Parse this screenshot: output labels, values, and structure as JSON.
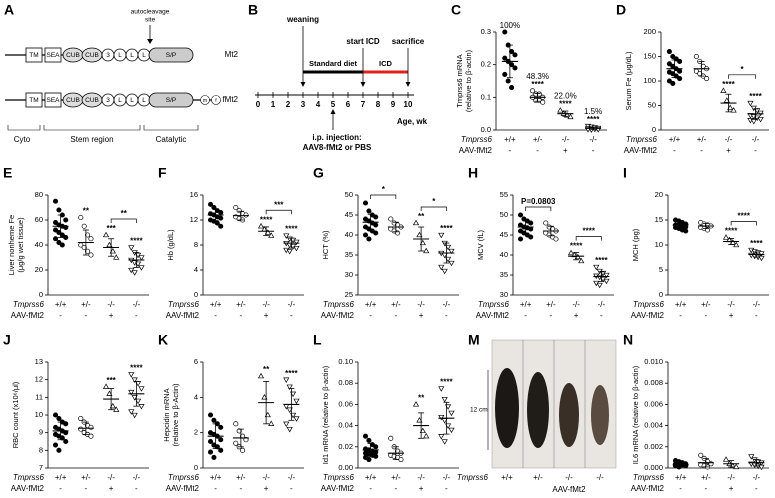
{
  "groups": {
    "genotype_label": "Tmprss6",
    "genotypes": [
      "+/+",
      "+/-",
      "-/-",
      "-/-"
    ],
    "aav_label": "AAV-fMt2",
    "aav": [
      "-",
      "-",
      "+",
      "-"
    ],
    "markers": [
      "circle-filled",
      "circle-open",
      "triangle-open",
      "triangle-down-open"
    ],
    "star_color": "#e0201b"
  },
  "diagram_a": {
    "panel": "A",
    "autocleavage": [
      "autocleavage",
      "site"
    ],
    "rows": [
      {
        "name": "Mt2",
        "domains": [
          "TM",
          "SEA",
          "CUB",
          "CUB",
          "3",
          "L",
          "L",
          "L",
          "S/P"
        ]
      },
      {
        "name": "fMt2",
        "domains": [
          "TM",
          "SEA",
          "CUB",
          "CUB",
          "3",
          "L",
          "L",
          "L",
          "S/P",
          "m",
          "f"
        ]
      }
    ],
    "regions": [
      "Cyto",
      "Stem region",
      "Catalytic"
    ]
  },
  "timeline_b": {
    "panel": "B",
    "ticks": [
      0,
      1,
      2,
      3,
      4,
      5,
      6,
      7,
      8,
      9,
      10
    ],
    "axis_label": "Age, wk",
    "segments": [
      {
        "label": "Standard diet",
        "from": 3,
        "to": 7,
        "color": "#000000"
      },
      {
        "label": "ICD",
        "from": 7,
        "to": 10,
        "color": "#e0201b"
      }
    ],
    "events": [
      {
        "label": "weaning",
        "week": 3
      },
      {
        "label": "start ICD",
        "week": 7
      },
      {
        "label": "sacrifice",
        "week": 10
      }
    ],
    "injection": {
      "lines": [
        "i.p. injection:",
        "AAV8-fMt2 or PBS"
      ],
      "week": 5
    }
  },
  "photo_m": {
    "panel": "M",
    "scale": "12 cm"
  },
  "chart_data": [
    {
      "type": "dot",
      "panel": "C",
      "ylabel": [
        "Tmprss6 mRNA",
        "(relative to β-actin)"
      ],
      "ylim": [
        0,
        0.3
      ],
      "yticks": [
        {
          "value": 0,
          "label": "0.0"
        },
        0.1,
        0.2,
        0.3
      ],
      "points": [
        [
          0.3,
          0.26,
          0.24,
          0.23,
          0.22,
          0.21,
          0.2,
          0.19,
          0.17,
          0.15,
          0.13
        ],
        [
          0.12,
          0.11,
          0.11,
          0.1,
          0.1,
          0.09,
          0.09,
          0.085
        ],
        [
          0.06,
          0.05,
          0.045,
          0.04
        ],
        [
          0.012,
          0.01,
          0.008,
          0.006,
          0.005,
          0.004,
          0.003,
          0.002,
          0.002,
          0.001
        ]
      ],
      "means": [
        0.21,
        0.1,
        0.05,
        0.005
      ],
      "sd": [
        0.05,
        0.012,
        0.008,
        0.004
      ],
      "percent": [
        "100%",
        "48.3%",
        "22.0%",
        "1.5%"
      ],
      "stars": [
        null,
        "****",
        "****",
        "****"
      ],
      "brackets": []
    },
    {
      "type": "dot",
      "panel": "D",
      "ylabel": [
        "Serum Fe (μg/dL)"
      ],
      "ylim": [
        0,
        200
      ],
      "yticks": [
        0,
        50,
        100,
        150,
        200
      ],
      "points": [
        [
          160,
          150,
          145,
          140,
          135,
          130,
          125,
          120,
          118,
          115,
          110,
          105,
          100,
          95
        ],
        [
          150,
          140,
          130,
          125,
          120,
          115,
          110,
          105
        ],
        [
          80,
          60,
          45,
          40
        ],
        [
          55,
          45,
          40,
          35,
          30,
          28,
          25,
          22,
          20,
          18
        ]
      ],
      "means": [
        125,
        125,
        55,
        33
      ],
      "sd": [
        18,
        15,
        18,
        10
      ],
      "stars": [
        null,
        null,
        "****",
        "****"
      ],
      "brackets": [
        {
          "from": 2,
          "to": 3,
          "text": "*",
          "color": "#e0201b"
        }
      ]
    },
    {
      "type": "dot",
      "panel": "E",
      "ylabel": [
        "Liver nonheme Fe",
        "(μg/g wet tissue)"
      ],
      "ylim": [
        0,
        80
      ],
      "yticks": [
        0,
        20,
        40,
        60,
        80
      ],
      "points": [
        [
          75,
          68,
          64,
          60,
          58,
          56,
          55,
          54,
          52,
          50,
          48,
          46,
          45,
          42,
          40
        ],
        [
          62,
          55,
          48,
          45,
          40,
          38,
          35,
          32
        ],
        [
          48,
          40,
          35,
          30
        ],
        [
          38,
          34,
          32,
          30,
          28,
          26,
          25,
          22,
          20,
          18
        ]
      ],
      "means": [
        55,
        42,
        38,
        28
      ],
      "sd": [
        9,
        10,
        7,
        6
      ],
      "stars": [
        null,
        "**",
        "***",
        "****"
      ],
      "brackets": [
        {
          "from": 2,
          "to": 3,
          "text": "**",
          "color": "#e0201b"
        }
      ]
    },
    {
      "type": "dot",
      "panel": "F",
      "ylabel": [
        "Hb (g/dL)"
      ],
      "ylim": [
        0,
        16
      ],
      "yticks": [
        0,
        4,
        8,
        12,
        16
      ],
      "points": [
        [
          14.5,
          14,
          13.5,
          13.2,
          13,
          12.8,
          12.5,
          12.3,
          12,
          11.8,
          11.5,
          11
        ],
        [
          14,
          13.5,
          13,
          12.8,
          12.5,
          12.2,
          12
        ],
        [
          11,
          10.5,
          10,
          9.5
        ],
        [
          9.5,
          9,
          8.8,
          8.5,
          8.3,
          8,
          7.8,
          7.5,
          7.2,
          7
        ]
      ],
      "means": [
        12.8,
        12.7,
        10.2,
        8.3
      ],
      "sd": [
        0.9,
        0.7,
        0.7,
        0.8
      ],
      "stars": [
        null,
        null,
        "****",
        "****"
      ],
      "brackets": [
        {
          "from": 2,
          "to": 3,
          "text": "***",
          "color": "#e0201b"
        }
      ]
    },
    {
      "type": "dot",
      "panel": "G",
      "ylabel": [
        "HCT (%)"
      ],
      "ylim": [
        25,
        50
      ],
      "yticks": [
        25,
        30,
        35,
        40,
        45,
        50
      ],
      "points": [
        [
          48,
          46,
          45,
          44.5,
          44,
          43.5,
          43,
          42.5,
          42,
          41.5,
          41,
          40.5,
          40,
          39
        ],
        [
          44,
          43,
          42.5,
          42,
          41.5,
          41,
          40.5
        ],
        [
          43,
          40,
          38,
          36
        ],
        [
          40,
          38,
          37,
          36,
          35.5,
          35,
          34,
          33,
          32,
          31
        ]
      ],
      "means": [
        43.2,
        42,
        39,
        35.5
      ],
      "sd": [
        2,
        1.2,
        3,
        2.5
      ],
      "stars": [
        null,
        null,
        "**",
        "****"
      ],
      "brackets": [
        {
          "from": 0,
          "to": 1,
          "text": "*",
          "color": "#e0201b"
        },
        {
          "from": 2,
          "to": 3,
          "text": "*",
          "color": "#e0201b"
        }
      ]
    },
    {
      "type": "dot",
      "panel": "H",
      "ylabel": [
        "MCV (fL)"
      ],
      "ylim": [
        30,
        55
      ],
      "yticks": [
        30,
        35,
        40,
        45,
        50,
        55
      ],
      "points": [
        [
          50,
          49,
          48.5,
          48,
          47.5,
          47,
          46.8,
          46.5,
          46,
          45.5,
          45,
          44.5,
          44
        ],
        [
          48,
          47,
          46.5,
          46,
          45.5,
          45,
          44.5,
          44
        ],
        [
          40.5,
          40,
          39.5,
          38.5
        ],
        [
          37,
          36,
          35.5,
          35,
          34.8,
          34.5,
          34,
          33.5,
          33,
          32.5
        ]
      ],
      "means": [
        47,
        46,
        39.7,
        34.6
      ],
      "sd": [
        1.5,
        1.2,
        0.9,
        1.2
      ],
      "stars": [
        null,
        null,
        "****",
        "****"
      ],
      "brackets": [
        {
          "from": 0,
          "to": 1,
          "text": "P=0.0803",
          "color": "#000000"
        },
        {
          "from": 2,
          "to": 3,
          "text": "****",
          "color": "#e0201b"
        }
      ]
    },
    {
      "type": "dot",
      "panel": "I",
      "ylabel": [
        "MCH (pg)"
      ],
      "ylim": [
        0,
        20
      ],
      "yticks": [
        0,
        5,
        10,
        15,
        20
      ],
      "points": [
        [
          15,
          14.8,
          14.5,
          14.2,
          14,
          14,
          13.8,
          13.6,
          13.5,
          13.3,
          13,
          12.8
        ],
        [
          14.5,
          14.2,
          14,
          13.8,
          13.5,
          13.3,
          13
        ],
        [
          11.5,
          11,
          10.5,
          10
        ],
        [
          9,
          8.7,
          8.5,
          8.3,
          8,
          7.8,
          7.6,
          7.4
        ]
      ],
      "means": [
        14,
        13.8,
        10.7,
        8.1
      ],
      "sd": [
        0.6,
        0.5,
        0.6,
        0.5
      ],
      "stars": [
        null,
        null,
        "****",
        "****"
      ],
      "brackets": [
        {
          "from": 2,
          "to": 3,
          "text": "****",
          "color": "#e0201b"
        }
      ]
    },
    {
      "type": "dot",
      "panel": "J",
      "ylabel": [
        "RBC count (x10⁶/μl)"
      ],
      "ylim": [
        7,
        13
      ],
      "yticks": [
        7,
        8,
        9,
        10,
        11,
        12,
        13
      ],
      "points": [
        [
          10,
          9.8,
          9.6,
          9.5,
          9.3,
          9.2,
          9.1,
          9,
          8.9,
          8.8,
          8.7,
          8.5,
          8.3,
          8
        ],
        [
          9.8,
          9.6,
          9.4,
          9.3,
          9.2,
          9,
          8.9,
          8.8
        ],
        [
          11.6,
          11.2,
          10.5,
          10.3
        ],
        [
          12.3,
          12,
          11.8,
          11.5,
          11.3,
          11,
          10.8,
          10.5,
          10.2,
          10
        ]
      ],
      "means": [
        9.1,
        9.25,
        10.9,
        11.2
      ],
      "sd": [
        0.5,
        0.35,
        0.6,
        0.7
      ],
      "stars": [
        null,
        null,
        "***",
        "****"
      ],
      "brackets": []
    },
    {
      "type": "dot",
      "panel": "K",
      "ylabel": [
        "Hepcidin mRNA",
        "(relative to β-Actin)"
      ],
      "ylim": [
        0,
        6
      ],
      "yticks": [
        0,
        2,
        4,
        6
      ],
      "points": [
        [
          3,
          2.7,
          2.5,
          2.3,
          2,
          1.9,
          1.8,
          1.6,
          1.5,
          1.3,
          1.2,
          1,
          0.9,
          0.6
        ],
        [
          2.5,
          2.1,
          1.8,
          1.6,
          1.4,
          1.2,
          1
        ],
        [
          5.2,
          4,
          3,
          2.5
        ],
        [
          5,
          4.6,
          4.2,
          3.8,
          3.5,
          3.3,
          3,
          2.8,
          2.5,
          2.2
        ]
      ],
      "means": [
        1.8,
        1.7,
        3.7,
        3.6
      ],
      "sd": [
        0.7,
        0.5,
        1.2,
        0.9
      ],
      "stars": [
        null,
        null,
        "**",
        "****"
      ],
      "brackets": []
    },
    {
      "type": "dot",
      "panel": "L",
      "ylabel": [
        "Id1 mRNA (relative to β-actin)"
      ],
      "ylim": [
        0,
        0.1
      ],
      "yticks": [
        {
          "value": 0,
          "label": "0.00"
        },
        0.02,
        0.04,
        0.06,
        0.08,
        {
          "value": 0.1,
          "label": "0.10"
        }
      ],
      "points": [
        [
          0.03,
          0.026,
          0.022,
          0.02,
          0.018,
          0.017,
          0.016,
          0.015,
          0.014,
          0.013,
          0.012,
          0.011,
          0.01,
          0.008
        ],
        [
          0.028,
          0.02,
          0.016,
          0.014,
          0.012,
          0.011,
          0.01,
          0.008
        ],
        [
          0.06,
          0.045,
          0.035,
          0.03
        ],
        [
          0.075,
          0.065,
          0.058,
          0.052,
          0.048,
          0.045,
          0.04,
          0.036,
          0.03,
          0.025
        ]
      ],
      "means": [
        0.017,
        0.014,
        0.04,
        0.047
      ],
      "sd": [
        0.006,
        0.006,
        0.012,
        0.015
      ],
      "stars": [
        null,
        null,
        "**",
        "****"
      ],
      "brackets": []
    },
    {
      "type": "dot",
      "panel": "N",
      "ylabel": [
        "IL6 mRNA (relative to β-actin)"
      ],
      "ylim": [
        0,
        0.01
      ],
      "yticks": [
        {
          "value": 0,
          "label": "0.000"
        },
        0.002,
        0.004,
        0.006,
        0.008,
        {
          "value": 0.01,
          "label": "0.010"
        }
      ],
      "points": [
        [
          0.0007,
          0.0006,
          0.0005,
          0.0004,
          0.0004,
          0.0003,
          0.0003,
          0.0002,
          0.0002,
          0.0001
        ],
        [
          0.0012,
          0.0009,
          0.0006,
          0.0004,
          0.0003,
          0.0002,
          0.0001
        ],
        [
          0.0008,
          0.0004,
          0.0002,
          0.0001
        ],
        [
          0.0011,
          0.0008,
          0.0006,
          0.0005,
          0.0004,
          0.0003,
          0.0002,
          0.0001
        ]
      ],
      "means": [
        0.0003,
        0.0005,
        0.0004,
        0.0005
      ],
      "sd": [
        0.0002,
        0.0004,
        0.0003,
        0.0003
      ],
      "stars": [
        null,
        null,
        null,
        null
      ],
      "brackets": []
    }
  ]
}
